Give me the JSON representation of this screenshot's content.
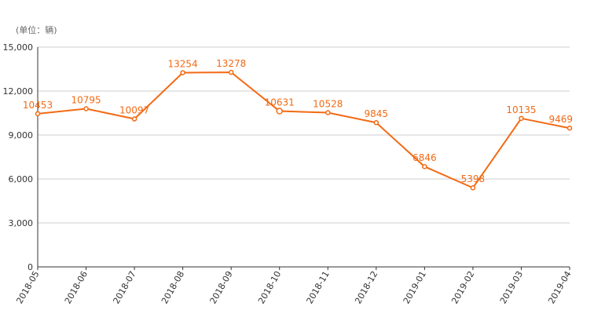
{
  "unit_label": "(单位：辆)",
  "colors": {
    "series": "#f26a14",
    "grid": "#cccccc",
    "axis": "#333333",
    "text": "#333333"
  },
  "chart_data": {
    "type": "line",
    "title": "",
    "xlabel": "",
    "ylabel": "",
    "x": [
      "2018-05",
      "2018-06",
      "2018-07",
      "2018-08",
      "2018-09",
      "2018-10",
      "2018-11",
      "2018-12",
      "2019-01",
      "2019-02",
      "2019-03",
      "2019-04"
    ],
    "values": [
      10453,
      10795,
      10097,
      13254,
      13278,
      10631,
      10528,
      9845,
      6846,
      5398,
      10135,
      9469
    ],
    "ylim": [
      0,
      15000
    ],
    "y_ticks": [
      0,
      3000,
      6000,
      9000,
      12000,
      15000
    ],
    "y_tick_labels": [
      "0",
      "3,000",
      "6,000",
      "9,000",
      "12,000",
      "15,000"
    ],
    "grid": true,
    "legend": "none"
  }
}
